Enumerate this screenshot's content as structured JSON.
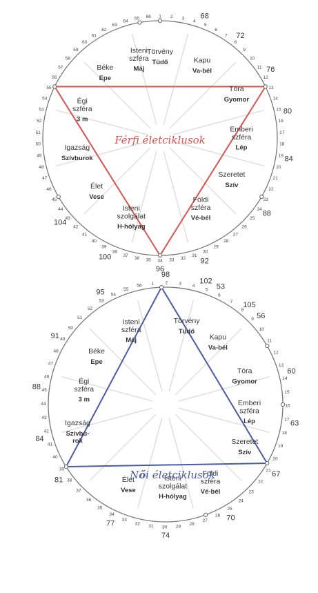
{
  "colors": {
    "male": "#d9534f",
    "female": "#4a5aa8",
    "ring": "#777777",
    "spokes": "#dddddd"
  },
  "male": {
    "title": "Férfi életciklusok",
    "sectors": [
      {
        "name": "Törvény",
        "organ": "Tüdő"
      },
      {
        "name": "Kapu",
        "organ": "Va-bél"
      },
      {
        "name": "Tóra",
        "organ": "Gyomor"
      },
      {
        "name": "Emberi\nszféra",
        "organ": "Lép"
      },
      {
        "name": "Szeretet",
        "organ": "Szív"
      },
      {
        "name": "Földi\nszféra",
        "organ": "Vé-bél"
      },
      {
        "name": "Isteni\nszolgálat",
        "organ": "H-hólyag"
      },
      {
        "name": "Élet",
        "organ": "Vese"
      },
      {
        "name": "Igazság",
        "organ": "Szívburok"
      },
      {
        "name": "Égi\nszféra",
        "organ": "3 m"
      },
      {
        "name": "Béke",
        "organ": "Epe"
      },
      {
        "name": "Isteni\nszféra",
        "organ": "Máj"
      }
    ],
    "outer_labels": [
      "68",
      "72",
      "76",
      "80",
      "84",
      "88",
      "92",
      "96",
      "100",
      "104"
    ]
  },
  "female": {
    "title_prefix": "N",
    "title_accent": "ő",
    "title_rest": "i életciklusok",
    "sectors": [
      {
        "name": "Törvény",
        "organ": "Tüdő"
      },
      {
        "name": "Kapu",
        "organ": "Va-bél"
      },
      {
        "name": "Tóra",
        "organ": "Gyomor"
      },
      {
        "name": "Emberi\nszféra",
        "organ": "Lép"
      },
      {
        "name": "Szeretet",
        "organ": "Szív"
      },
      {
        "name": "Földi\nszféra",
        "organ": "Vé-bél"
      },
      {
        "name": "Isteni\nszolgálat",
        "organ": "H-hólyag"
      },
      {
        "name": "Élet",
        "organ": "Vese"
      },
      {
        "name": "Igazság",
        "organ": "Szívbu-\nrok"
      },
      {
        "name": "Égi\nszféra",
        "organ": "3 m"
      },
      {
        "name": "Béke",
        "organ": "Epe"
      },
      {
        "name": "Isteni\nszféra",
        "organ": "Máj"
      }
    ],
    "outer_labels": [
      "98",
      "102",
      "53",
      "105",
      "56",
      "60",
      "63",
      "67",
      "70",
      "74",
      "77",
      "81",
      "84",
      "88",
      "91",
      "95"
    ]
  }
}
